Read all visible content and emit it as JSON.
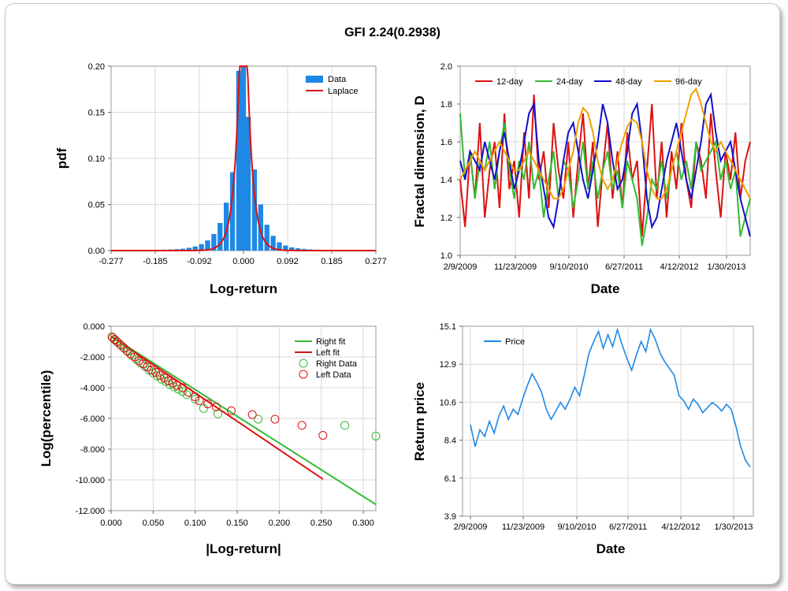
{
  "title": "GFI 2.24(0.2938)",
  "colors": {
    "data_bar": "#1e88e5",
    "laplace": "#dd1111",
    "d12": "#dd1111",
    "d24": "#33bb33",
    "d48": "#1111cc",
    "d96": "#f0a000",
    "right_fit": "#33bb33",
    "left_fit": "#dd1111",
    "price": "#1e88e5",
    "grid": "#d8d8d8"
  },
  "chart_data": [
    {
      "id": "pdf",
      "type": "bar",
      "xlabel": "Log-return",
      "ylabel": "pdf",
      "xlim": [
        -0.277,
        0.277
      ],
      "ylim": [
        0,
        0.2
      ],
      "xticks": [
        "-0.277",
        "-0.185",
        "-0.092",
        "0.000",
        "0.092",
        "0.185",
        "0.277"
      ],
      "yticks": [
        "0.00",
        "0.05",
        "0.10",
        "0.15",
        "0.20"
      ],
      "legend": [
        "Data",
        "Laplace"
      ],
      "legend_position": "top-right",
      "bins_center": [
        -0.231,
        -0.218,
        -0.205,
        -0.192,
        -0.179,
        -0.166,
        -0.153,
        -0.14,
        -0.127,
        -0.114,
        -0.101,
        -0.088,
        -0.075,
        -0.062,
        -0.049,
        -0.036,
        -0.023,
        -0.01,
        0.0,
        0.01,
        0.023,
        0.036,
        0.049,
        0.062,
        0.075,
        0.088,
        0.101,
        0.114,
        0.127,
        0.14,
        0.153,
        0.166,
        0.179,
        0.192,
        0.205,
        0.218,
        0.231,
        0.244,
        0.257,
        0.27
      ],
      "bins_value": [
        0.0005,
        0.0003,
        0.0004,
        0.0006,
        0.0007,
        0.001,
        0.0012,
        0.0015,
        0.002,
        0.003,
        0.0045,
        0.007,
        0.011,
        0.018,
        0.03,
        0.052,
        0.085,
        0.195,
        0.2,
        0.145,
        0.088,
        0.05,
        0.028,
        0.016,
        0.009,
        0.0055,
        0.0035,
        0.0025,
        0.0018,
        0.0013,
        0.001,
        0.0008,
        0.0006,
        0.0005,
        0.0004,
        0.0003,
        0.0003,
        0.0002,
        0.0002,
        0.0001
      ],
      "laplace_center": 0.0,
      "laplace_scale": 0.0122
    },
    {
      "id": "fractal",
      "type": "line",
      "xlabel": "Date",
      "ylabel": "Fractal dimension, D",
      "ylim": [
        1.0,
        2.0
      ],
      "xticks": [
        "2/9/2009",
        "11/23/2009",
        "9/10/2010",
        "6/27/2011",
        "4/12/2012",
        "1/30/2013"
      ],
      "yticks": [
        "1.0",
        "1.2",
        "1.4",
        "1.6",
        "1.8",
        "2.0"
      ],
      "legend_position": "top",
      "series": [
        {
          "name": "12-day",
          "values": [
            1.4,
            1.15,
            1.55,
            1.3,
            1.7,
            1.2,
            1.45,
            1.6,
            1.25,
            1.75,
            1.35,
            1.5,
            1.2,
            1.65,
            1.3,
            1.85,
            1.4,
            1.55,
            1.25,
            1.7,
            1.45,
            1.3,
            1.6,
            1.2,
            1.5,
            1.75,
            1.35,
            1.6,
            1.15,
            1.45,
            1.7,
            1.3,
            1.55,
            1.25,
            1.65,
            1.4,
            1.5,
            1.1,
            1.45,
            1.8,
            1.3,
            1.6,
            1.2,
            1.55,
            1.35,
            1.7,
            1.4,
            1.25,
            1.6,
            1.5,
            1.3,
            1.75,
            1.45,
            1.2,
            1.55,
            1.4,
            1.65,
            1.3,
            1.5,
            1.6
          ]
        },
        {
          "name": "24-day",
          "values": [
            1.75,
            1.4,
            1.55,
            1.3,
            1.5,
            1.45,
            1.6,
            1.35,
            1.55,
            1.7,
            1.45,
            1.3,
            1.5,
            1.4,
            1.6,
            1.35,
            1.45,
            1.2,
            1.4,
            1.55,
            1.3,
            1.5,
            1.45,
            1.25,
            1.4,
            1.6,
            1.35,
            1.5,
            1.3,
            1.45,
            1.55,
            1.35,
            1.45,
            1.25,
            1.5,
            1.4,
            1.3,
            1.05,
            1.2,
            1.4,
            1.35,
            1.5,
            1.3,
            1.45,
            1.55,
            1.4,
            1.5,
            1.35,
            1.6,
            1.45,
            1.5,
            1.55,
            1.6,
            1.4,
            1.5,
            1.35,
            1.45,
            1.1,
            1.2,
            1.3
          ]
        },
        {
          "name": "48-day",
          "values": [
            1.5,
            1.4,
            1.55,
            1.5,
            1.45,
            1.6,
            1.5,
            1.4,
            1.55,
            1.65,
            1.5,
            1.35,
            1.45,
            1.6,
            1.75,
            1.8,
            1.5,
            1.35,
            1.2,
            1.15,
            1.3,
            1.5,
            1.65,
            1.7,
            1.55,
            1.4,
            1.3,
            1.45,
            1.6,
            1.8,
            1.7,
            1.5,
            1.35,
            1.4,
            1.55,
            1.75,
            1.8,
            1.6,
            1.3,
            1.15,
            1.2,
            1.35,
            1.5,
            1.6,
            1.7,
            1.55,
            1.4,
            1.3,
            1.45,
            1.6,
            1.8,
            1.85,
            1.65,
            1.5,
            1.55,
            1.6,
            1.45,
            1.3,
            1.2,
            1.1
          ]
        },
        {
          "name": "96-day",
          "values": [
            1.4,
            1.45,
            1.5,
            1.55,
            1.5,
            1.45,
            1.5,
            1.55,
            1.6,
            1.55,
            1.5,
            1.45,
            1.45,
            1.5,
            1.55,
            1.5,
            1.45,
            1.4,
            1.35,
            1.3,
            1.3,
            1.35,
            1.45,
            1.55,
            1.7,
            1.78,
            1.75,
            1.65,
            1.5,
            1.4,
            1.35,
            1.4,
            1.5,
            1.6,
            1.68,
            1.72,
            1.7,
            1.6,
            1.45,
            1.35,
            1.3,
            1.3,
            1.35,
            1.45,
            1.55,
            1.65,
            1.75,
            1.85,
            1.88,
            1.8,
            1.7,
            1.6,
            1.55,
            1.6,
            1.55,
            1.5,
            1.45,
            1.4,
            1.35,
            1.3
          ]
        }
      ]
    },
    {
      "id": "tail",
      "type": "scatter",
      "xlabel": "|Log-return|",
      "ylabel": "Log(percentile)",
      "xlim": [
        0.0,
        0.315
      ],
      "ylim": [
        -12.0,
        0.0
      ],
      "xticks": [
        "0.000",
        "0.050",
        "0.100",
        "0.150",
        "0.200",
        "0.250",
        "0.300"
      ],
      "yticks": [
        "0.000",
        "-2.000",
        "-4.000",
        "-6.000",
        "-8.000",
        "-10.000",
        "-12.000"
      ],
      "legend": [
        "Right fit",
        "Left fit",
        "Right Data",
        "Left Data"
      ],
      "legend_position": "top-right",
      "right_fit": {
        "x": [
          0.0,
          0.315
        ],
        "y": [
          -0.65,
          -11.6
        ]
      },
      "left_fit": {
        "x": [
          0.0,
          0.252
        ],
        "y": [
          -0.65,
          -9.95
        ]
      },
      "right_data": {
        "x": [
          0.002,
          0.005,
          0.008,
          0.012,
          0.016,
          0.02,
          0.025,
          0.03,
          0.035,
          0.04,
          0.045,
          0.05,
          0.055,
          0.06,
          0.065,
          0.07,
          0.075,
          0.08,
          0.085,
          0.09,
          0.1,
          0.11,
          0.127,
          0.175,
          0.278,
          0.315
        ],
        "y": [
          -0.75,
          -0.9,
          -1.05,
          -1.25,
          -1.45,
          -1.65,
          -1.9,
          -2.15,
          -2.4,
          -2.6,
          -2.85,
          -3.05,
          -3.25,
          -3.45,
          -3.6,
          -3.8,
          -3.95,
          -4.1,
          -4.25,
          -4.45,
          -4.75,
          -5.35,
          -5.7,
          -6.05,
          -6.45,
          -7.15
        ]
      },
      "left_data": {
        "x": [
          0.001,
          0.004,
          0.007,
          0.011,
          0.015,
          0.019,
          0.023,
          0.028,
          0.033,
          0.038,
          0.043,
          0.048,
          0.053,
          0.058,
          0.063,
          0.068,
          0.073,
          0.078,
          0.085,
          0.092,
          0.1,
          0.105,
          0.115,
          0.125,
          0.143,
          0.168,
          0.195,
          0.227,
          0.252
        ],
        "y": [
          -0.7,
          -0.85,
          -1.0,
          -1.2,
          -1.4,
          -1.6,
          -1.8,
          -2.0,
          -2.25,
          -2.45,
          -2.65,
          -2.85,
          -3.0,
          -3.2,
          -3.35,
          -3.55,
          -3.7,
          -3.85,
          -4.0,
          -4.3,
          -4.6,
          -4.85,
          -5.05,
          -5.25,
          -5.5,
          -5.75,
          -6.05,
          -6.45,
          -7.1
        ]
      }
    },
    {
      "id": "price",
      "type": "line",
      "xlabel": "Date",
      "ylabel": "Return price",
      "ylim": [
        3.9,
        15.1
      ],
      "xticks": [
        "2/9/2009",
        "11/23/2009",
        "9/10/2010",
        "6/27/2011",
        "4/12/2012",
        "1/30/2013"
      ],
      "yticks": [
        "15.1",
        "12.9",
        "10.6",
        "8.4",
        "6.1",
        "3.9"
      ],
      "legend": [
        "Price"
      ],
      "legend_position": "top-left",
      "series": [
        {
          "name": "Price",
          "values": [
            9.3,
            8.0,
            9.0,
            8.6,
            9.5,
            8.8,
            9.8,
            10.4,
            9.6,
            10.2,
            9.9,
            10.8,
            11.6,
            12.3,
            11.8,
            11.2,
            10.2,
            9.6,
            10.1,
            10.6,
            10.2,
            10.8,
            11.5,
            11.0,
            12.2,
            13.5,
            14.2,
            14.8,
            13.8,
            14.6,
            13.9,
            14.9,
            14.0,
            13.2,
            12.5,
            13.4,
            14.2,
            13.6,
            14.9,
            14.3,
            13.5,
            13.0,
            12.6,
            12.2,
            11.0,
            10.7,
            10.2,
            10.8,
            10.5,
            10.0,
            10.3,
            10.6,
            10.4,
            10.1,
            10.5,
            10.2,
            9.2,
            8.0,
            7.2,
            6.8
          ]
        }
      ]
    }
  ]
}
